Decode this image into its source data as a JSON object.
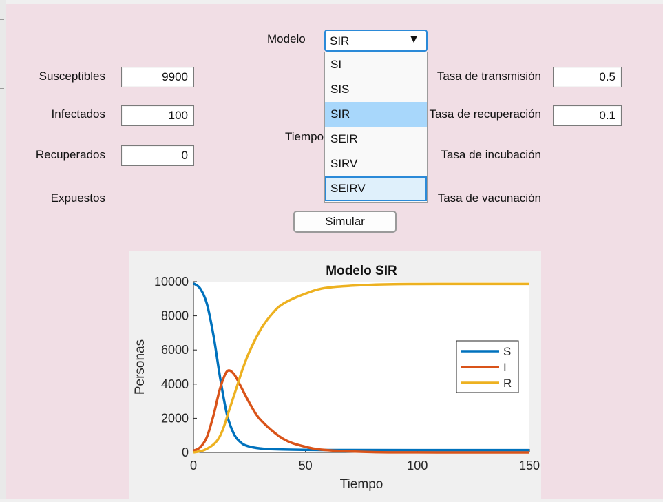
{
  "form": {
    "susceptibles_label": "Susceptibles",
    "susceptibles_value": "9900",
    "infectados_label": "Infectados",
    "infectados_value": "100",
    "recuperados_label": "Recuperados",
    "recuperados_value": "0",
    "expuestos_label": "Expuestos",
    "tiempo_label": "Tiempo",
    "modelo_label": "Modelo",
    "transmision_label": "Tasa de transmisión",
    "transmision_value": "0.5",
    "recuperacion_label": "Tasa de recuperación",
    "recuperacion_value": "0.1",
    "incubacion_label": "Tasa de incubación",
    "vacunacion_label": "Tasa de vacunación",
    "simular_label": "Simular"
  },
  "dropdown": {
    "selected": "SIR",
    "arrow": "▼",
    "options": [
      "SI",
      "SIS",
      "SIR",
      "SEIR",
      "SIRV",
      "SEIRV"
    ]
  },
  "chart_data": {
    "type": "line",
    "title": "Modelo SIR",
    "xlabel": "Tiempo",
    "ylabel": "Personas",
    "xlim": [
      0,
      150
    ],
    "ylim": [
      0,
      10000
    ],
    "xticks": [
      0,
      50,
      100,
      150
    ],
    "yticks": [
      0,
      2000,
      4000,
      6000,
      8000,
      10000
    ],
    "legend": "right",
    "grid": false,
    "series": [
      {
        "name": "S",
        "color": "#0072BD",
        "x": [
          0,
          3,
          6,
          9,
          12,
          15,
          18,
          21,
          24,
          30,
          40,
          60,
          100,
          150
        ],
        "y": [
          9900,
          9600,
          8700,
          6800,
          4300,
          2200,
          1100,
          600,
          380,
          230,
          170,
          140,
          135,
          135
        ]
      },
      {
        "name": "I",
        "color": "#D95319",
        "x": [
          0,
          3,
          6,
          9,
          12,
          15,
          18,
          21,
          25,
          30,
          40,
          50,
          60,
          80,
          100,
          150
        ],
        "y": [
          100,
          300,
          900,
          2200,
          3800,
          4750,
          4600,
          3900,
          2900,
          1900,
          800,
          330,
          130,
          20,
          3,
          0
        ]
      },
      {
        "name": "R",
        "color": "#EDB120",
        "x": [
          0,
          5,
          10,
          13,
          16,
          19,
          22,
          25,
          30,
          35,
          40,
          50,
          60,
          80,
          100,
          150
        ],
        "y": [
          0,
          150,
          600,
          1300,
          2500,
          3700,
          4900,
          5900,
          7200,
          8100,
          8700,
          9300,
          9650,
          9820,
          9860,
          9865
        ]
      }
    ]
  }
}
